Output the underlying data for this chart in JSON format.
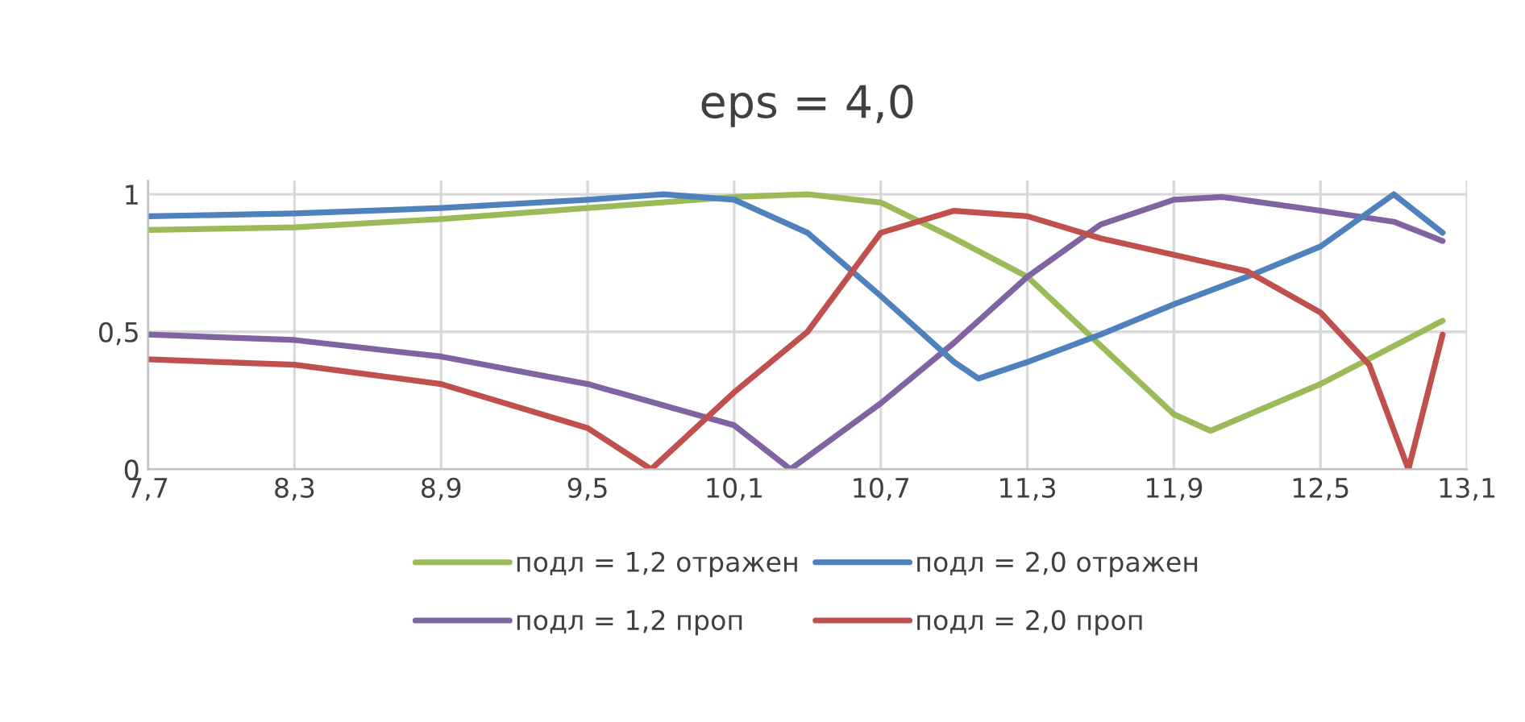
{
  "chart_data": {
    "type": "line",
    "title": "eps = 4,0",
    "xlim": [
      7.7,
      13.1
    ],
    "xticks": [
      {
        "value": 7.7,
        "label": "7,7"
      },
      {
        "value": 8.3,
        "label": "8,3"
      },
      {
        "value": 8.9,
        "label": "8,9"
      },
      {
        "value": 9.5,
        "label": "9,5"
      },
      {
        "value": 10.1,
        "label": "10,1"
      },
      {
        "value": 10.7,
        "label": "10,7"
      },
      {
        "value": 11.3,
        "label": "11,3"
      },
      {
        "value": 11.9,
        "label": "11,9"
      },
      {
        "value": 12.5,
        "label": "12,5"
      },
      {
        "value": 13.1,
        "label": "13,1"
      }
    ],
    "ylim": [
      0,
      1.05
    ],
    "yticks": [
      0,
      {
        "value": 0.5,
        "label": "0,5"
      },
      1
    ],
    "grid": true,
    "legend": "bottom",
    "line_style": "solid",
    "marker": "none",
    "series": [
      {
        "name": "подл = 1,2 отражен",
        "color": "#9bbb59",
        "x": [
          7.7,
          8.3,
          8.9,
          9.5,
          10.1,
          10.4,
          10.7,
          11.0,
          11.3,
          11.6,
          11.9,
          12.05,
          12.5,
          13.0
        ],
        "values": [
          0.87,
          0.88,
          0.91,
          0.95,
          0.99,
          1.0,
          0.97,
          0.84,
          0.7,
          0.45,
          0.2,
          0.14,
          0.31,
          0.54
        ]
      },
      {
        "name": "подл = 1,2 проп",
        "color": "#8064a2",
        "x": [
          7.7,
          8.3,
          8.9,
          9.5,
          10.1,
          10.33,
          10.7,
          11.0,
          11.3,
          11.6,
          11.9,
          12.1,
          12.5,
          12.8,
          13.0
        ],
        "values": [
          0.49,
          0.47,
          0.41,
          0.31,
          0.16,
          0.0,
          0.24,
          0.46,
          0.7,
          0.89,
          0.98,
          0.99,
          0.94,
          0.9,
          0.83
        ]
      },
      {
        "name": "подл = 2,0 отражен",
        "color": "#4f81bd",
        "x": [
          7.7,
          8.3,
          8.9,
          9.5,
          9.81,
          10.1,
          10.4,
          10.7,
          11.0,
          11.1,
          11.3,
          11.6,
          11.9,
          12.2,
          12.5,
          12.8,
          13.0
        ],
        "values": [
          0.92,
          0.93,
          0.95,
          0.98,
          1.0,
          0.98,
          0.86,
          0.63,
          0.39,
          0.33,
          0.39,
          0.49,
          0.6,
          0.7,
          0.81,
          1.0,
          0.86
        ]
      },
      {
        "name": "подл = 2,0 проп",
        "color": "#c0504d",
        "x": [
          7.7,
          8.3,
          8.9,
          9.5,
          9.76,
          10.1,
          10.4,
          10.7,
          11.0,
          11.3,
          11.6,
          11.9,
          12.2,
          12.5,
          12.7,
          12.86,
          13.0
        ],
        "values": [
          0.4,
          0.38,
          0.31,
          0.15,
          0.0,
          0.28,
          0.5,
          0.86,
          0.94,
          0.92,
          0.84,
          0.78,
          0.72,
          0.57,
          0.38,
          0.0,
          0.49
        ]
      }
    ]
  }
}
